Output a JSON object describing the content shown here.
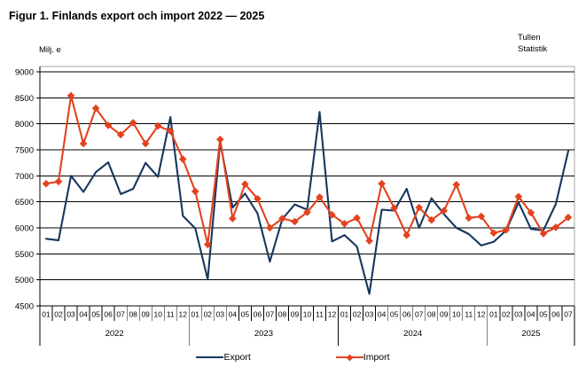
{
  "figure": {
    "title": "Figur 1. Finlands export och import 2022 — 2025",
    "unit_label": "Milj. e",
    "source_line1": "Tullen",
    "source_line2": "Statistik"
  },
  "chart_data": {
    "type": "line",
    "title": "Figur 1. Finlands export och import 2022 — 2025",
    "ylabel": "Milj. e",
    "ylim": [
      4500,
      9000
    ],
    "ytick_step": 500,
    "yticks": [
      4500,
      5000,
      5500,
      6000,
      6500,
      7000,
      7500,
      8000,
      8500,
      9000
    ],
    "grid": true,
    "legend_position": "bottom",
    "x_groups": [
      {
        "year": "2022",
        "months": 12
      },
      {
        "year": "2023",
        "months": 12
      },
      {
        "year": "2024",
        "months": 12
      },
      {
        "year": "2025",
        "months": 7
      }
    ],
    "categories": [
      "01",
      "02",
      "03",
      "04",
      "05",
      "06",
      "07",
      "08",
      "09",
      "10",
      "11",
      "12",
      "01",
      "02",
      "03",
      "04",
      "05",
      "06",
      "07",
      "08",
      "09",
      "10",
      "11",
      "12",
      "01",
      "02",
      "03",
      "04",
      "05",
      "06",
      "07",
      "08",
      "09",
      "10",
      "11",
      "12",
      "01",
      "02",
      "03",
      "04",
      "05",
      "06",
      "07"
    ],
    "series": [
      {
        "name": "Export",
        "color": "#17375E",
        "marker": "none",
        "values": [
          5790,
          5760,
          7000,
          6690,
          7070,
          7260,
          6650,
          6750,
          7250,
          6980,
          8130,
          6230,
          5990,
          5010,
          7650,
          6390,
          6660,
          6280,
          5350,
          6170,
          6450,
          6350,
          8230,
          5740,
          5860,
          5640,
          4730,
          6350,
          6330,
          6750,
          6000,
          6570,
          6260,
          6000,
          5880,
          5660,
          5730,
          5950,
          6490,
          5980,
          5950,
          6460,
          7480
        ]
      },
      {
        "name": "Import",
        "color": "#E2431E",
        "marker": "diamond",
        "values": [
          6850,
          6890,
          8540,
          7620,
          8300,
          7970,
          7790,
          8020,
          7620,
          7960,
          7860,
          7320,
          6700,
          5680,
          7700,
          6180,
          6840,
          6560,
          6000,
          6180,
          6120,
          6300,
          6590,
          6250,
          6080,
          6190,
          5750,
          6850,
          6380,
          5860,
          6390,
          6150,
          6330,
          6830,
          6190,
          6220,
          5900,
          5960,
          6600,
          6290,
          5890,
          6010,
          6200
        ]
      }
    ]
  }
}
